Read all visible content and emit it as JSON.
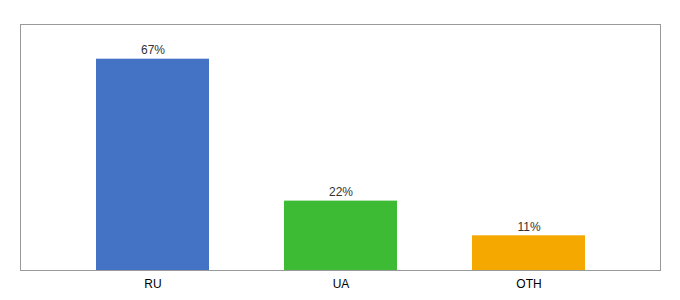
{
  "chart_data": {
    "type": "bar",
    "categories": [
      "RU",
      "UA",
      "OTH"
    ],
    "values": [
      67,
      22,
      11
    ],
    "value_labels": [
      "67%",
      "22%",
      "11%"
    ],
    "colors": [
      "#4472c4",
      "#3dbb35",
      "#f5a800"
    ],
    "ylim": [
      0,
      78
    ],
    "grid": false,
    "data_labels": true,
    "tick_labels": "x"
  }
}
